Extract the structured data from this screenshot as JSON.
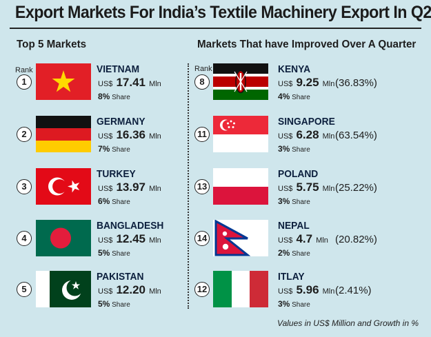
{
  "title": "Export Markets For India’s Textile Machinery Export In Q2",
  "left": {
    "heading": "Top 5 Markets",
    "rank_label": "Rank",
    "items": [
      {
        "rank": "1",
        "country": "VIETNAM",
        "currency": "US$",
        "value": "17.41",
        "unit": "Mln",
        "share": "8%",
        "share_label": "Share",
        "flag": "vietnam-flag-icon"
      },
      {
        "rank": "2",
        "country": "GERMANY",
        "currency": "US$",
        "value": "16.36",
        "unit": "Mln",
        "share": "7%",
        "share_label": "Share",
        "flag": "germany-flag-icon"
      },
      {
        "rank": "3",
        "country": "TURKEY",
        "currency": "US$",
        "value": "13.97",
        "unit": "Mln",
        "share": "6%",
        "share_label": "Share",
        "flag": "turkey-flag-icon"
      },
      {
        "rank": "4",
        "country": "BANGLADESH",
        "currency": "US$",
        "value": "12.45",
        "unit": "Mln",
        "share": "5%",
        "share_label": "Share",
        "flag": "bangladesh-flag-icon"
      },
      {
        "rank": "5",
        "country": "PAKISTAN",
        "currency": "US$",
        "value": "12.20",
        "unit": "Mln",
        "share": "5%",
        "share_label": "Share",
        "flag": "pakistan-flag-icon"
      }
    ]
  },
  "right": {
    "heading": "Markets That have Improved Over A Quarter",
    "rank_label": "Rank",
    "items": [
      {
        "rank": "8",
        "country": "KENYA",
        "currency": "US$",
        "value": "9.25",
        "unit": "Mln",
        "share": "4%",
        "share_label": "Share",
        "growth": "(36.83%)",
        "flag": "kenya-flag-icon"
      },
      {
        "rank": "11",
        "country": "SINGAPORE",
        "currency": "US$",
        "value": "6.28",
        "unit": "Mln",
        "share": "3%",
        "share_label": "Share",
        "growth": "(63.54%)",
        "flag": "singapore-flag-icon"
      },
      {
        "rank": "13",
        "country": "POLAND",
        "currency": "US$",
        "value": "5.75",
        "unit": "Mln",
        "share": "3%",
        "share_label": "Share",
        "growth": "(25.22%)",
        "flag": "poland-flag-icon"
      },
      {
        "rank": "14",
        "country": "NEPAL",
        "currency": "US$",
        "value": "4.7",
        "unit": "Mln",
        "share": "2%",
        "share_label": "Share",
        "growth": "(20.82%)",
        "flag": "nepal-flag-icon"
      },
      {
        "rank": "12",
        "country": "ITLAY",
        "currency": "US$",
        "value": "5.96",
        "unit": "Mln",
        "share": "3%",
        "share_label": "Share",
        "growth": "(2.41%)",
        "flag": "italy-flag-icon"
      }
    ]
  },
  "footnote": "Values in US$ Million and Growth in %",
  "colors": {
    "background": "#cfe6ec",
    "country_name": "#0c1f3d"
  }
}
